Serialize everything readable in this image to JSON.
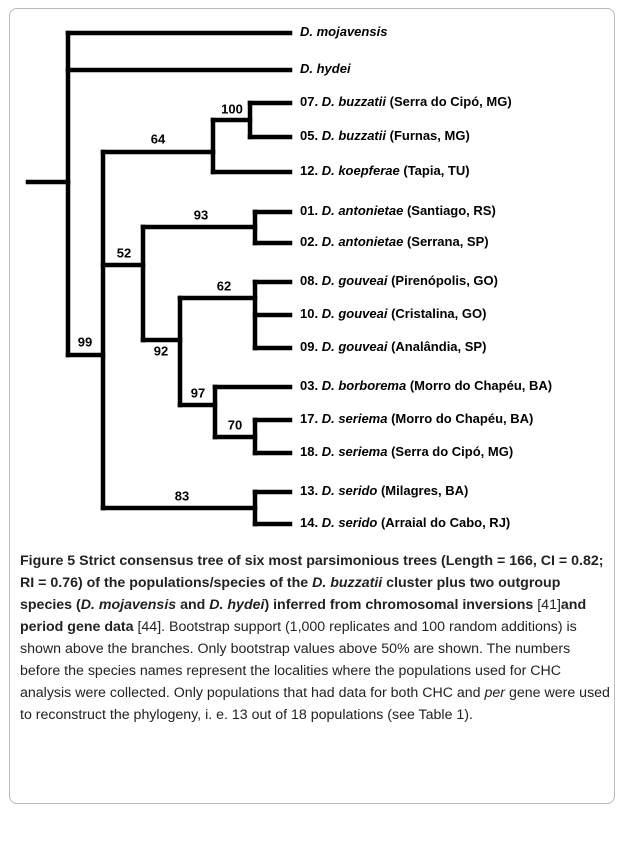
{
  "tree": {
    "leaves": [
      {
        "species": "D. mojavensis"
      },
      {
        "species": "D. hydei"
      },
      {
        "number": "07.",
        "species": "D. buzzatii",
        "locality": "(Serra do Cipó, MG)"
      },
      {
        "number": "05.",
        "species": "D. buzzatii",
        "locality": "(Furnas, MG)"
      },
      {
        "number": "12.",
        "species": "D. koepferae",
        "locality": "(Tapia, TU)"
      },
      {
        "number": "01.",
        "species": "D. antonietae",
        "locality": "(Santiago, RS)"
      },
      {
        "number": "02.",
        "species": "D. antonietae",
        "locality": "(Serrana, SP)"
      },
      {
        "number": "08.",
        "species": "D. gouveai",
        "locality": "(Pirenópolis, GO)"
      },
      {
        "number": "10.",
        "species": "D. gouveai",
        "locality": "(Cristalina, GO)"
      },
      {
        "number": "09.",
        "species": "D. gouveai",
        "locality": "(Analândia, SP)"
      },
      {
        "number": "03.",
        "species": "D. borborema",
        "locality": "(Morro do Chapéu, BA)"
      },
      {
        "number": "17.",
        "species": "D. seriema",
        "locality": "(Morro do Chapéu, BA)"
      },
      {
        "number": "18.",
        "species": "D. seriema",
        "locality": "(Serra do Cipó, MG)"
      },
      {
        "number": "13.",
        "species": "D. serido",
        "locality": "(Milagres, BA)"
      },
      {
        "number": "14.",
        "species": "D. serido",
        "locality": "(Arraial do Cabo, RJ)"
      }
    ],
    "support": [
      "100",
      "64",
      "93",
      "52",
      "62",
      "99",
      "92",
      "97",
      "70",
      "83"
    ]
  },
  "caption": {
    "runs": [
      "Figure 5",
      " Strict consensus tree of six most parsimonious trees (Length = 166, CI = 0.82; RI = 0.76) of the populations/species of the ",
      "D. buzzatii",
      " cluster plus two outgroup species (",
      "D. mojavensis",
      " and ",
      "D. hydei",
      ") inferred from chromosomal inversions",
      " [41]",
      "and period gene data",
      " [44]. Bootstrap support (1,000 replicates and 100 random additions) is shown above the branches. Only bootstrap values above 50% are shown. The numbers before the species names represent the localities where the populations used for CHC analysis were collected. Only populations that had data for both CHC and ",
      "per",
      " gene were used to reconstruct the phylogeny, i. e. 13 out of 18 populations (see Table 1)."
    ]
  }
}
